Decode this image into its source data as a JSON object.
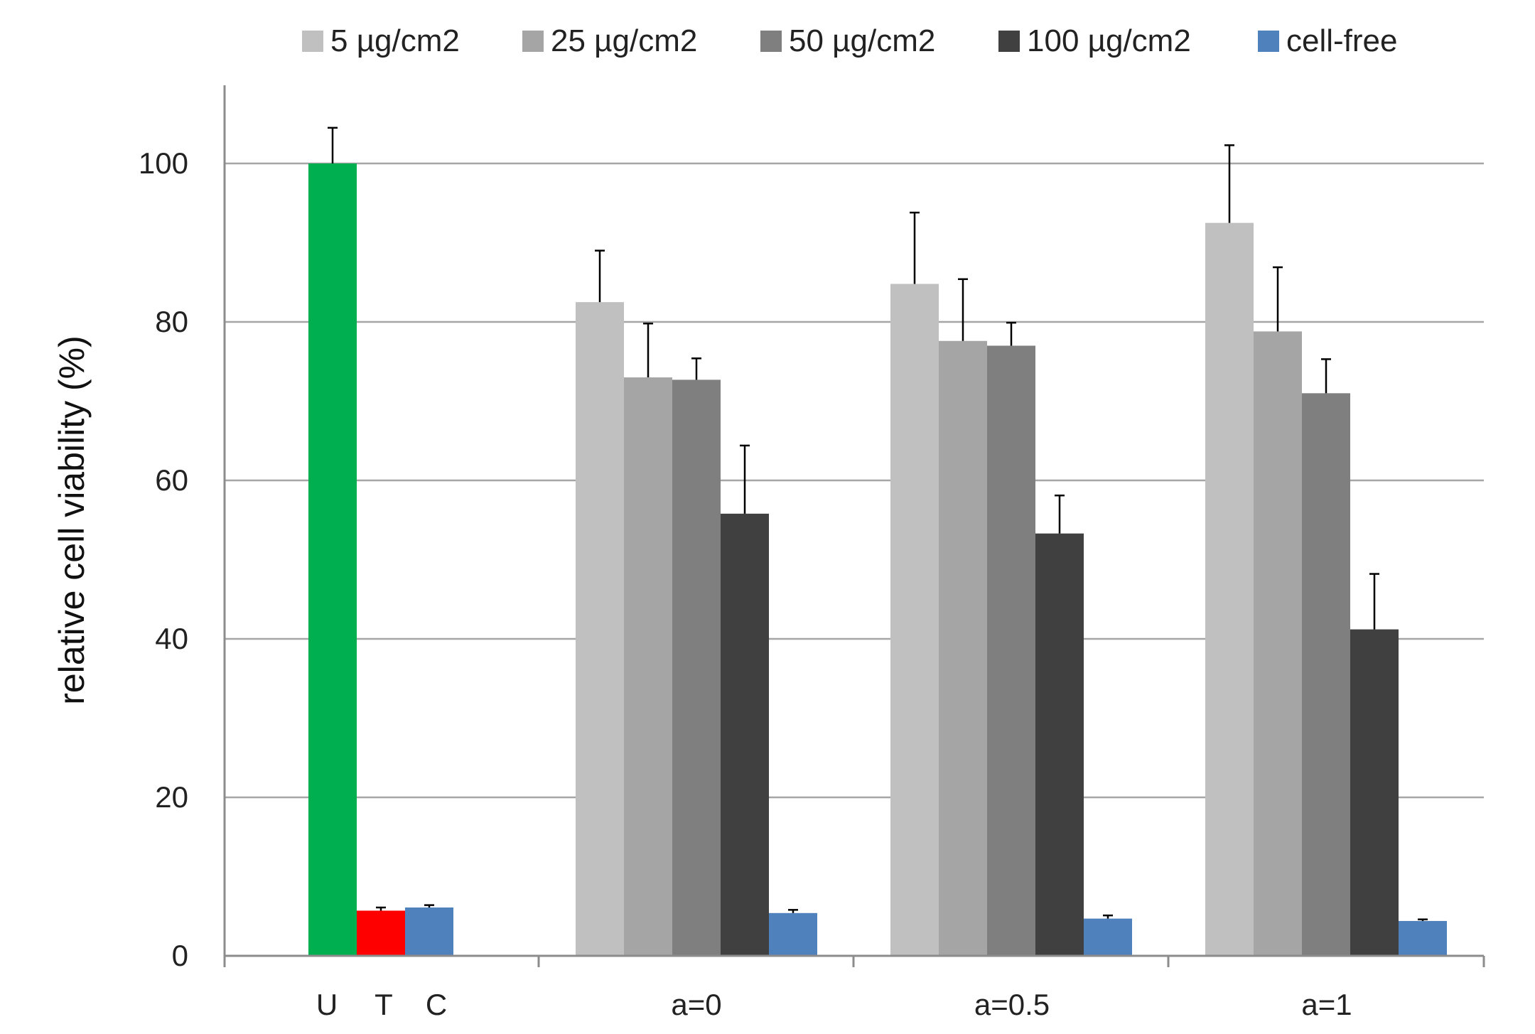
{
  "chart_data": {
    "type": "bar",
    "title": "",
    "xlabel": "",
    "ylabel": "relative cell viability (%)",
    "ylim": [
      0,
      110
    ],
    "yticks": [
      0,
      20,
      40,
      60,
      80,
      100
    ],
    "grid": true,
    "legend_position": "top",
    "control_group": {
      "label_letters": [
        "U",
        "T",
        "C"
      ],
      "bars": [
        {
          "label": "U",
          "value": 100,
          "error": 4.5,
          "color": "#00b050"
        },
        {
          "label": "T",
          "value": 5.7,
          "error": 0.4,
          "color": "#ff0000"
        },
        {
          "label": "C",
          "value": 6.1,
          "error": 0.3,
          "color": "#4f81bd"
        }
      ]
    },
    "categories": [
      "a=0",
      "a=0.5",
      "a=1"
    ],
    "series": [
      {
        "name": "5 µg/cm2",
        "color": "#c0c0c0",
        "values": [
          82.5,
          84.8,
          92.5
        ],
        "errors": [
          6.5,
          9.0,
          9.8
        ]
      },
      {
        "name": "25 µg/cm2",
        "color": "#a5a5a5",
        "values": [
          73.0,
          77.6,
          78.8
        ],
        "errors": [
          6.8,
          7.8,
          8.1
        ]
      },
      {
        "name": "50 µg/cm2",
        "color": "#7f7f7f",
        "values": [
          72.7,
          77.0,
          71.0
        ],
        "errors": [
          2.7,
          2.9,
          4.3
        ]
      },
      {
        "name": "100 µg/cm2",
        "color": "#404040",
        "values": [
          55.8,
          53.3,
          41.2
        ],
        "errors": [
          8.6,
          4.8,
          7.0
        ]
      },
      {
        "name": "cell-free",
        "color": "#4f81bd",
        "values": [
          5.4,
          4.7,
          4.4
        ],
        "errors": [
          0.4,
          0.4,
          0.2
        ]
      }
    ]
  }
}
